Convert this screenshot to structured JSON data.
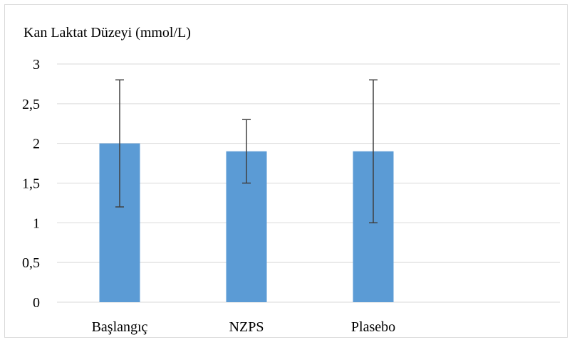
{
  "chart_data": {
    "type": "bar",
    "title": "Kan Laktat Düzeyi (mmol/L)",
    "xlabel": "",
    "ylabel": "",
    "categories": [
      "Başlangıç",
      "NZPS",
      "Plasebo"
    ],
    "series": [
      {
        "values": [
          2.0,
          1.9,
          1.9
        ],
        "error_low": [
          1.2,
          1.5,
          1.0
        ],
        "error_high": [
          2.8,
          2.3,
          2.8
        ],
        "color": "#5b9bd5"
      }
    ],
    "ylim": [
      0,
      3
    ],
    "y_ticks": [
      0,
      0.5,
      1,
      1.5,
      2,
      2.5,
      3
    ],
    "y_tick_labels": [
      "0",
      "0,5",
      "1",
      "1,5",
      "2",
      "2,5",
      "3"
    ],
    "grid": true,
    "legend": "none"
  },
  "colors": {
    "bar": "#5b9bd5",
    "grid": "#d9d9d9",
    "error_bar": "#404040"
  }
}
